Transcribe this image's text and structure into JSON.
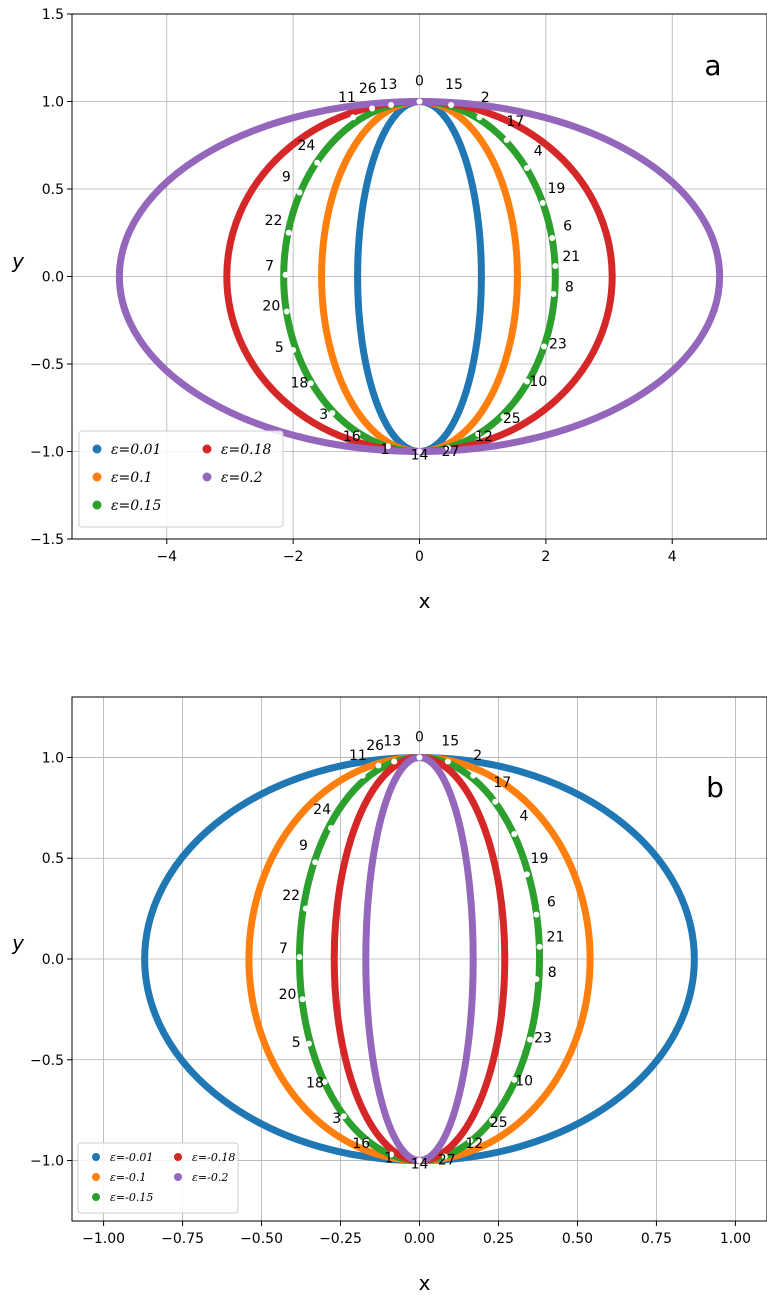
{
  "chart_data": [
    {
      "type": "line",
      "panel_label": "a",
      "xlabel": "x",
      "ylabel": "y",
      "xlim": [
        -5.5,
        5.5
      ],
      "ylim": [
        -1.5,
        1.5
      ],
      "x_ticks": [
        -4,
        -2,
        0,
        2,
        4
      ],
      "y_ticks": [
        -1.5,
        -1.0,
        -0.5,
        0.0,
        0.5,
        1.0,
        1.5
      ],
      "x_tick_labels": [
        "−4",
        "−2",
        "0",
        "2",
        "4"
      ],
      "y_tick_labels": [
        "−1.5",
        "−1.0",
        "−0.5",
        "0.0",
        "0.5",
        "1.0",
        "1.5"
      ],
      "grid": true,
      "legend_placement": "lower-left",
      "series": [
        {
          "name": "ε=0.01",
          "color": "#1f77b4",
          "x_semi_axis": 0.98,
          "y_semi_axis": 1.0
        },
        {
          "name": "ε=0.1",
          "color": "#ff7f0e",
          "x_semi_axis": 1.55,
          "y_semi_axis": 1.0
        },
        {
          "name": "ε=0.15",
          "color": "#2ca02c",
          "x_semi_axis": 2.15,
          "y_semi_axis": 1.0
        },
        {
          "name": "ε=0.18",
          "color": "#d62728",
          "x_semi_axis": 3.05,
          "y_semi_axis": 1.0
        },
        {
          "name": "ε=0.2",
          "color": "#9467bd",
          "x_semi_axis": 4.75,
          "y_semi_axis": 1.0
        }
      ],
      "points": [
        {
          "label": "0",
          "x": 0.0,
          "y": 1.0
        },
        {
          "label": "1",
          "x": -0.5,
          "y": -0.97
        },
        {
          "label": "2",
          "x": 0.95,
          "y": 0.91
        },
        {
          "label": "3",
          "x": -1.38,
          "y": -0.78
        },
        {
          "label": "4",
          "x": 1.7,
          "y": 0.62
        },
        {
          "label": "5",
          "x": -2.0,
          "y": -0.42
        },
        {
          "label": "6",
          "x": 2.1,
          "y": 0.22
        },
        {
          "label": "7",
          "x": -2.12,
          "y": 0.01
        },
        {
          "label": "8",
          "x": 2.12,
          "y": -0.1
        },
        {
          "label": "9",
          "x": -1.9,
          "y": 0.48
        },
        {
          "label": "10",
          "x": 1.7,
          "y": -0.6
        },
        {
          "label": "11",
          "x": -1.05,
          "y": 0.91
        },
        {
          "label": "12",
          "x": 0.93,
          "y": -0.9
        },
        {
          "label": "13",
          "x": -0.45,
          "y": 0.98
        },
        {
          "label": "14",
          "x": 0.0,
          "y": -1.0
        },
        {
          "label": "15",
          "x": 0.5,
          "y": 0.98
        },
        {
          "label": "16",
          "x": -0.98,
          "y": -0.9
        },
        {
          "label": "17",
          "x": 1.38,
          "y": 0.78
        },
        {
          "label": "18",
          "x": -1.72,
          "y": -0.61
        },
        {
          "label": "19",
          "x": 1.95,
          "y": 0.42
        },
        {
          "label": "20",
          "x": -2.1,
          "y": -0.2
        },
        {
          "label": "21",
          "x": 2.15,
          "y": 0.06
        },
        {
          "label": "22",
          "x": -2.07,
          "y": 0.25
        },
        {
          "label": "23",
          "x": 1.97,
          "y": -0.4
        },
        {
          "label": "24",
          "x": -1.62,
          "y": 0.65
        },
        {
          "label": "25",
          "x": 1.33,
          "y": -0.8
        },
        {
          "label": "26",
          "x": -0.75,
          "y": 0.96
        },
        {
          "label": "27",
          "x": 0.45,
          "y": -0.98
        }
      ]
    },
    {
      "type": "line",
      "panel_label": "b",
      "xlabel": "x",
      "ylabel": "y",
      "xlim": [
        -1.1,
        1.1
      ],
      "ylim": [
        -1.3,
        1.3
      ],
      "x_ticks": [
        -1.0,
        -0.75,
        -0.5,
        -0.25,
        0.0,
        0.25,
        0.5,
        0.75,
        1.0
      ],
      "y_ticks": [
        -1.0,
        -0.5,
        0.0,
        0.5,
        1.0
      ],
      "x_tick_labels": [
        "−1.00",
        "−0.75",
        "−0.50",
        "−0.25",
        "0.00",
        "0.25",
        "0.50",
        "0.75",
        "1.00"
      ],
      "y_tick_labels": [
        "−1.0",
        "−0.5",
        "0.0",
        "0.5",
        "1.0"
      ],
      "grid": true,
      "legend_placement": "lower-left",
      "series": [
        {
          "name": "ε=-0.01",
          "color": "#1f77b4",
          "x_semi_axis": 0.87,
          "y_semi_axis": 1.0
        },
        {
          "name": "ε=-0.1",
          "color": "#ff7f0e",
          "x_semi_axis": 0.54,
          "y_semi_axis": 1.0
        },
        {
          "name": "ε=-0.15",
          "color": "#2ca02c",
          "x_semi_axis": 0.38,
          "y_semi_axis": 1.0
        },
        {
          "name": "ε=-0.18",
          "color": "#d62728",
          "x_semi_axis": 0.27,
          "y_semi_axis": 1.0
        },
        {
          "name": "ε=-0.2",
          "color": "#9467bd",
          "x_semi_axis": 0.17,
          "y_semi_axis": 1.0
        }
      ],
      "points": [
        {
          "label": "0",
          "x": 0.0,
          "y": 1.0
        },
        {
          "label": "1",
          "x": -0.09,
          "y": -0.97
        },
        {
          "label": "2",
          "x": 0.17,
          "y": 0.91
        },
        {
          "label": "3",
          "x": -0.24,
          "y": -0.78
        },
        {
          "label": "4",
          "x": 0.3,
          "y": 0.62
        },
        {
          "label": "5",
          "x": -0.35,
          "y": -0.42
        },
        {
          "label": "6",
          "x": 0.37,
          "y": 0.22
        },
        {
          "label": "7",
          "x": -0.38,
          "y": 0.01
        },
        {
          "label": "8",
          "x": 0.37,
          "y": -0.1
        },
        {
          "label": "9",
          "x": -0.33,
          "y": 0.48
        },
        {
          "label": "10",
          "x": 0.3,
          "y": -0.6
        },
        {
          "label": "11",
          "x": -0.18,
          "y": 0.91
        },
        {
          "label": "12",
          "x": 0.16,
          "y": -0.9
        },
        {
          "label": "13",
          "x": -0.08,
          "y": 0.98
        },
        {
          "label": "14",
          "x": 0.0,
          "y": -1.0
        },
        {
          "label": "15",
          "x": 0.09,
          "y": 0.98
        },
        {
          "label": "16",
          "x": -0.17,
          "y": -0.9
        },
        {
          "label": "17",
          "x": 0.24,
          "y": 0.78
        },
        {
          "label": "18",
          "x": -0.3,
          "y": -0.61
        },
        {
          "label": "19",
          "x": 0.34,
          "y": 0.42
        },
        {
          "label": "20",
          "x": -0.37,
          "y": -0.2
        },
        {
          "label": "21",
          "x": 0.38,
          "y": 0.06
        },
        {
          "label": "22",
          "x": -0.36,
          "y": 0.25
        },
        {
          "label": "23",
          "x": 0.35,
          "y": -0.4
        },
        {
          "label": "24",
          "x": -0.28,
          "y": 0.65
        },
        {
          "label": "25",
          "x": 0.23,
          "y": -0.8
        },
        {
          "label": "26",
          "x": -0.13,
          "y": 0.96
        },
        {
          "label": "27",
          "x": 0.08,
          "y": -0.98
        }
      ]
    }
  ]
}
